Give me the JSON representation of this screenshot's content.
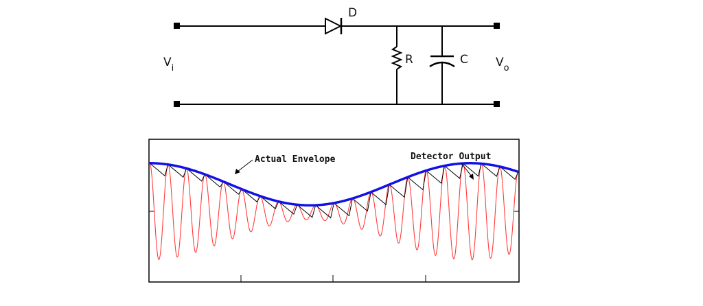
{
  "circuit": {
    "diode_label": "D",
    "resistor_label": "R",
    "capacitor_label": "C",
    "input_label": "V",
    "input_subscript": "i",
    "output_label": "V",
    "output_subscript": "o"
  },
  "waveform": {
    "annotations": {
      "envelope": "Actual Envelope",
      "detector": "Detector Output"
    },
    "colors": {
      "carrier": "#ff3b3b",
      "envelope": "#1010e8",
      "detector": "#000000",
      "frame": "#000000"
    },
    "carrier_cycles": 20,
    "envelope_mean": 0.31,
    "envelope_amplitude": 0.15,
    "envelope_cycles": 1.15
  }
}
